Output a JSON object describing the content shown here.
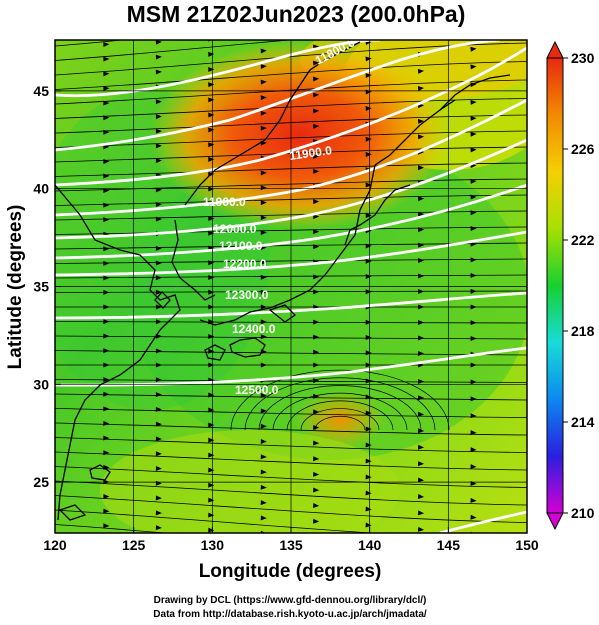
{
  "title": "MSM 21Z02Jun2023 (200.0hPa)",
  "x_axis": {
    "label": "Longitude (degrees)",
    "range": [
      120,
      150
    ],
    "ticks": [
      "120",
      "125",
      "130",
      "135",
      "140",
      "145",
      "150"
    ]
  },
  "y_axis": {
    "label": "Latitude  (degrees)",
    "range": [
      22.4,
      47.6
    ],
    "ticks": [
      "25",
      "30",
      "35",
      "40",
      "45"
    ]
  },
  "colorbar": {
    "range": [
      210,
      230
    ],
    "ticks": [
      "230",
      "226",
      "222",
      "218",
      "214",
      "210"
    ],
    "colors": [
      "#d400d4",
      "#2a1fe0",
      "#0c88f0",
      "#17dcd8",
      "#18d030",
      "#a8e000",
      "#f4d000",
      "#f28a00",
      "#e82a10"
    ]
  },
  "contour_labels": [
    "11800.0",
    "11900.0",
    "11900.0",
    "12000.0",
    "12100.0",
    "12200.0",
    "12300.0",
    "12400.0",
    "12500.0"
  ],
  "credits": {
    "line1": "Drawing by DCL (https://www.gfd-dennou.org/library/dcl/)",
    "line2": "Data from http://database.rish.kyoto-u.ac.jp/arch/jmadata/"
  }
}
